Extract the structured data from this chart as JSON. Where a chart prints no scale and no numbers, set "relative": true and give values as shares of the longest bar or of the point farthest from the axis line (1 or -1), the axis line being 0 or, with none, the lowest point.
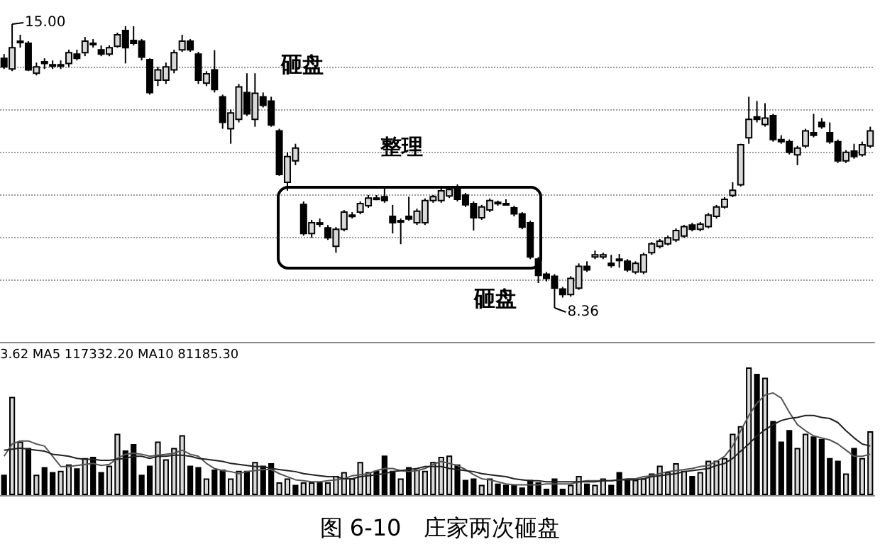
{
  "chart_data": [
    {
      "type": "candlestick",
      "colors": [
        "#000000",
        "#d9d9d9",
        "#d9d9d9",
        "#000000",
        "#d9d9d9",
        "#000000",
        "#d9d9d9",
        "#d9d9d9",
        "#d9d9d9",
        "#000000",
        "#d9d9d9",
        "#d9d9d9",
        "#000000",
        "#d9d9d9",
        "#d9d9d9",
        "#000000",
        "#000000",
        "#000000",
        "#000000",
        "#d9d9d9",
        "#d9d9d9",
        "#d9d9d9",
        "#d9d9d9",
        "#000000",
        "#000000",
        "#d9d9d9",
        "#000000",
        "#000000",
        "#d9d9d9",
        "#d9d9d9",
        "#000000",
        "#d9d9d9",
        "#000000",
        "#000000",
        "#000000",
        "#d9d9d9",
        "#d9d9d9",
        "#000000",
        "#d9d9d9",
        "#d9d9d9",
        "#000000",
        "#d9d9d9",
        "#d9d9d9",
        "#d9d9d9",
        "#d9d9d9",
        "#d9d9d9",
        "#d9d9d9",
        "#000000",
        "#000000",
        "#000000",
        "#000000",
        "#d9d9d9",
        "#d9d9d9",
        "#d9d9d9",
        "#d9d9d9",
        "#d9d9d9",
        "#000000",
        "#000000",
        "#000000",
        "#d9d9d9",
        "#d9d9d9",
        "#000000",
        "#d9d9d9",
        "#000000",
        "#000000",
        "#000000",
        "#000000",
        "#000000",
        "#000000",
        "#000000",
        "#d9d9d9",
        "#d9d9d9",
        "#000000",
        "#d9d9d9",
        "#d9d9d9",
        "#000000",
        "#d9d9d9",
        "#000000",
        "#d9d9d9",
        "#d9d9d9",
        "#d9d9d9",
        "#d9d9d9",
        "#d9d9d9",
        "#d9d9d9",
        "#d9d9d9",
        "#000000",
        "#d9d9d9",
        "#d9d9d9",
        "#d9d9d9",
        "#d9d9d9",
        "#d9d9d9",
        "#d9d9d9",
        "#d9d9d9",
        "#000000",
        "#d9d9d9",
        "#000000",
        "#000000",
        "#000000",
        "#d9d9d9",
        "#d9d9d9",
        "#000000",
        "#000000",
        "#000000",
        "#000000",
        "#d9d9d9",
        "#000000",
        "#d9d9d9",
        "#d9d9d9"
      ],
      "yticks": [
        {
          "value": 9,
          "label": null
        },
        {
          "value": 10,
          "label": null
        },
        {
          "value": 11,
          "label": null
        },
        {
          "value": 12,
          "label": null
        },
        {
          "value": 13,
          "label": null
        },
        {
          "value": 14,
          "label": null
        }
      ],
      "grid": "y",
      "tick_labels": false,
      "annotations": [
        "15.00",
        "砸盘",
        "整理",
        "砸盘",
        "8.36"
      ],
      "categories": [
        null,
        null,
        null,
        null,
        null,
        null,
        null,
        null,
        null,
        null,
        null,
        null,
        null,
        null,
        null,
        null,
        null,
        null,
        null,
        null,
        null,
        null,
        null,
        null,
        null,
        null,
        null,
        null,
        null,
        null,
        null,
        null,
        null,
        null,
        null,
        null,
        null,
        null,
        null,
        null,
        null,
        null,
        null,
        null,
        null,
        null,
        null,
        null,
        null,
        null,
        null,
        null,
        null,
        null,
        null,
        null,
        null,
        null,
        null,
        null,
        null,
        null,
        null,
        null,
        null,
        null,
        null,
        null,
        null,
        null,
        null,
        null,
        null,
        null,
        null,
        null,
        null,
        null,
        null,
        null,
        null,
        null,
        null,
        null,
        null,
        null,
        null,
        null,
        null,
        null,
        null,
        null,
        null,
        null,
        null,
        null,
        null,
        null,
        null,
        null,
        null,
        null,
        null,
        null,
        null,
        null,
        null,
        null
      ],
      "ohlc": [
        [
          14.2,
          14.3,
          13.95,
          14.0
        ],
        [
          13.95,
          15.0,
          13.9,
          14.45
        ],
        [
          14.6,
          14.75,
          14.45,
          14.6
        ],
        [
          14.55,
          14.6,
          13.9,
          13.93
        ],
        [
          13.85,
          14.1,
          13.8,
          14.0
        ],
        [
          14.12,
          14.2,
          13.95,
          14.08
        ],
        [
          14.05,
          14.15,
          13.95,
          14.05
        ],
        [
          14.05,
          14.15,
          13.95,
          14.05
        ],
        [
          14.08,
          14.4,
          14.0,
          14.33
        ],
        [
          14.3,
          14.4,
          14.15,
          14.2
        ],
        [
          14.33,
          14.7,
          14.25,
          14.6
        ],
        [
          14.55,
          14.65,
          14.45,
          14.55
        ],
        [
          14.4,
          14.5,
          14.25,
          14.3
        ],
        [
          14.3,
          14.5,
          14.25,
          14.45
        ],
        [
          14.48,
          14.8,
          14.45,
          14.75
        ],
        [
          14.85,
          14.95,
          14.08,
          14.45
        ],
        [
          14.62,
          14.95,
          14.5,
          14.55
        ],
        [
          14.6,
          14.65,
          14.15,
          14.23
        ],
        [
          14.17,
          14.2,
          13.35,
          13.4
        ],
        [
          13.69,
          14.0,
          13.55,
          13.93
        ],
        [
          13.69,
          14.1,
          13.6,
          14.0
        ],
        [
          13.93,
          14.4,
          13.85,
          14.33
        ],
        [
          14.4,
          14.75,
          14.35,
          14.6
        ],
        [
          14.6,
          14.65,
          14.35,
          14.4
        ],
        [
          14.3,
          14.35,
          13.6,
          13.69
        ],
        [
          13.62,
          13.9,
          13.55,
          13.84
        ],
        [
          13.93,
          14.39,
          13.4,
          13.47
        ],
        [
          13.3,
          13.35,
          12.55,
          12.7
        ],
        [
          12.55,
          13.0,
          12.2,
          12.92
        ],
        [
          12.77,
          13.6,
          12.7,
          13.53
        ],
        [
          13.4,
          13.85,
          12.85,
          12.9
        ],
        [
          12.77,
          13.85,
          12.6,
          13.38
        ],
        [
          13.3,
          13.4,
          13.05,
          13.1
        ],
        [
          13.2,
          13.3,
          12.6,
          12.64
        ],
        [
          12.5,
          12.55,
          11.45,
          11.48
        ],
        [
          11.3,
          12.0,
          11.1,
          11.9
        ],
        [
          11.8,
          12.2,
          11.7,
          12.1
        ],
        [
          10.78,
          10.85,
          10.05,
          10.1
        ],
        [
          10.1,
          10.42,
          10.0,
          10.35
        ],
        [
          10.35,
          10.45,
          10.25,
          10.35
        ],
        [
          10.23,
          10.3,
          9.95,
          10.0
        ],
        [
          9.8,
          10.25,
          9.65,
          10.2
        ],
        [
          10.2,
          10.65,
          10.15,
          10.6
        ],
        [
          10.5,
          10.6,
          10.45,
          10.53
        ],
        [
          10.6,
          10.85,
          10.55,
          10.8
        ],
        [
          10.75,
          11.0,
          10.7,
          10.93
        ],
        [
          10.93,
          11.0,
          10.88,
          10.93
        ],
        [
          10.96,
          11.2,
          10.82,
          10.87
        ],
        [
          10.5,
          10.77,
          10.1,
          10.35
        ],
        [
          10.4,
          10.45,
          9.85,
          10.38
        ],
        [
          10.5,
          10.96,
          10.4,
          10.44
        ],
        [
          10.35,
          10.68,
          10.3,
          10.62
        ],
        [
          10.35,
          10.92,
          10.3,
          10.87
        ],
        [
          10.87,
          11.0,
          10.82,
          10.96
        ],
        [
          10.87,
          11.15,
          10.82,
          11.1
        ],
        [
          10.98,
          11.2,
          10.93,
          11.13
        ],
        [
          11.2,
          11.25,
          10.85,
          10.9
        ],
        [
          11.0,
          11.05,
          10.72,
          10.77
        ],
        [
          10.8,
          10.85,
          10.17,
          10.47
        ],
        [
          10.47,
          10.77,
          10.42,
          10.72
        ],
        [
          10.65,
          10.92,
          10.6,
          10.87
        ],
        [
          10.83,
          10.87,
          10.75,
          10.8
        ],
        [
          10.8,
          10.9,
          10.75,
          10.8
        ],
        [
          10.7,
          10.75,
          10.5,
          10.56
        ],
        [
          10.56,
          10.6,
          10.2,
          10.25
        ],
        [
          10.35,
          10.4,
          9.5,
          9.55
        ],
        [
          9.5,
          9.55,
          8.94,
          9.12
        ],
        [
          9.15,
          9.2,
          8.98,
          9.05
        ],
        [
          9.1,
          9.15,
          8.36,
          8.82
        ],
        [
          8.8,
          8.85,
          8.6,
          8.67
        ],
        [
          8.67,
          9.1,
          8.62,
          9.05
        ],
        [
          8.82,
          9.4,
          8.78,
          9.33
        ],
        [
          9.33,
          9.45,
          9.2,
          9.25
        ],
        [
          9.55,
          9.7,
          9.5,
          9.6
        ],
        [
          9.55,
          9.65,
          9.5,
          9.6
        ],
        [
          9.4,
          9.6,
          9.3,
          9.35
        ],
        [
          9.5,
          9.62,
          9.3,
          9.5
        ],
        [
          9.45,
          9.5,
          9.2,
          9.25
        ],
        [
          9.2,
          9.45,
          9.15,
          9.4
        ],
        [
          9.2,
          9.65,
          9.15,
          9.6
        ],
        [
          9.65,
          9.9,
          9.6,
          9.86
        ],
        [
          9.8,
          9.97,
          9.75,
          9.92
        ],
        [
          9.86,
          10.05,
          9.82,
          10.0
        ],
        [
          9.95,
          10.22,
          9.9,
          10.17
        ],
        [
          10.04,
          10.3,
          10.0,
          10.26
        ],
        [
          10.3,
          10.35,
          10.15,
          10.2
        ],
        [
          10.2,
          10.37,
          10.15,
          10.32
        ],
        [
          10.26,
          10.58,
          10.22,
          10.53
        ],
        [
          10.5,
          10.77,
          10.45,
          10.72
        ],
        [
          10.72,
          10.95,
          10.68,
          10.9
        ],
        [
          10.99,
          11.3,
          10.95,
          11.11
        ],
        [
          11.24,
          12.2,
          11.2,
          12.18
        ],
        [
          12.34,
          13.3,
          12.2,
          12.77
        ],
        [
          12.83,
          13.2,
          12.7,
          12.77
        ],
        [
          12.65,
          13.15,
          12.6,
          12.8
        ],
        [
          12.86,
          12.9,
          12.25,
          12.3
        ],
        [
          12.3,
          12.4,
          12.2,
          12.25
        ],
        [
          12.25,
          12.3,
          11.95,
          12.0
        ],
        [
          11.94,
          12.15,
          11.7,
          12.1
        ],
        [
          12.15,
          12.55,
          12.1,
          12.5
        ],
        [
          12.46,
          12.9,
          12.35,
          12.4
        ],
        [
          12.7,
          12.8,
          12.55,
          12.6
        ],
        [
          12.46,
          12.7,
          12.2,
          12.25
        ],
        [
          12.25,
          12.3,
          11.75,
          11.8
        ],
        [
          11.8,
          12.05,
          11.75,
          12.0
        ],
        [
          12.03,
          12.2,
          11.85,
          11.9
        ],
        [
          11.94,
          12.25,
          11.9,
          12.18
        ],
        [
          12.15,
          12.6,
          12.1,
          12.5
        ]
      ]
    },
    {
      "type": "bar",
      "relative": true,
      "title": "图 6-10　庄家两次砸盘",
      "annotations": [
        "3.62 MA5 117332.20 MA10 81185.30"
      ],
      "categories": [
        null,
        null,
        null,
        null,
        null,
        null,
        null,
        null,
        null,
        null,
        null,
        null,
        null,
        null,
        null,
        null,
        null,
        null,
        null,
        null,
        null,
        null,
        null,
        null,
        null,
        null,
        null,
        null,
        null,
        null,
        null,
        null,
        null,
        null,
        null,
        null,
        null,
        null,
        null,
        null,
        null,
        null,
        null,
        null,
        null,
        null,
        null,
        null,
        null,
        null,
        null,
        null,
        null,
        null,
        null,
        null,
        null,
        null,
        null,
        null,
        null,
        null,
        null,
        null,
        null,
        null,
        null,
        null,
        null,
        null,
        null,
        null,
        null,
        null,
        null,
        null,
        null,
        null,
        null,
        null,
        null,
        null,
        null,
        null,
        null,
        null,
        null,
        null,
        null,
        null,
        null,
        null,
        null,
        null,
        null,
        null,
        null,
        null,
        null,
        null,
        null,
        null,
        null,
        null,
        null,
        null,
        null,
        null
      ],
      "series": [
        {
          "values": [
            0.16,
            0.77,
            0.42,
            0.37,
            0.16,
            0.22,
            0.18,
            0.19,
            0.24,
            0.21,
            0.29,
            0.3,
            0.18,
            0.23,
            0.48,
            0.35,
            0.4,
            0.16,
            0.23,
            0.42,
            0.28,
            0.37,
            0.47,
            0.23,
            0.22,
            0.13,
            0.2,
            0.2,
            0.13,
            0.19,
            0.19,
            0.26,
            0.23,
            0.25,
            0.1,
            0.13,
            0.08,
            0.1,
            0.1,
            0.1,
            0.1,
            0.15,
            0.18,
            0.13,
            0.26,
            0.18,
            0.19,
            0.31,
            0.19,
            0.13,
            0.22,
            0.2,
            0.19,
            0.26,
            0.3,
            0.31,
            0.24,
            0.12,
            0.13,
            0.08,
            0.13,
            0.09,
            0.08,
            0.08,
            0.06,
            0.12,
            0.1,
            0.05,
            0.13,
            0.05,
            0.08,
            0.15,
            0.09,
            0.08,
            0.13,
            0.08,
            0.18,
            0.12,
            0.12,
            0.13,
            0.17,
            0.23,
            0.18,
            0.25,
            0.19,
            0.15,
            0.18,
            0.27,
            0.27,
            0.29,
            0.48,
            0.54,
            1.0,
            0.95,
            0.92,
            0.58,
            0.42,
            0.51,
            0.37,
            0.48,
            0.46,
            0.44,
            0.29,
            0.27,
            0.17,
            0.37,
            0.29,
            0.5
          ],
          "colors": [
            "#000000",
            "#d9d9d9",
            "#d9d9d9",
            "#000000",
            "#d9d9d9",
            "#000000",
            "#000000",
            "#d9d9d9",
            "#d9d9d9",
            "#000000",
            "#d9d9d9",
            "#000000",
            "#000000",
            "#d9d9d9",
            "#d9d9d9",
            "#000000",
            "#000000",
            "#000000",
            "#000000",
            "#d9d9d9",
            "#d9d9d9",
            "#d9d9d9",
            "#d9d9d9",
            "#000000",
            "#000000",
            "#d9d9d9",
            "#000000",
            "#000000",
            "#d9d9d9",
            "#d9d9d9",
            "#000000",
            "#d9d9d9",
            "#000000",
            "#000000",
            "#d9d9d9",
            "#d9d9d9",
            "#000000",
            "#d9d9d9",
            "#d9d9d9",
            "#000000",
            "#d9d9d9",
            "#d9d9d9",
            "#d9d9d9",
            "#d9d9d9",
            "#d9d9d9",
            "#d9d9d9",
            "#000000",
            "#000000",
            "#000000",
            "#d9d9d9",
            "#000000",
            "#d9d9d9",
            "#d9d9d9",
            "#d9d9d9",
            "#d9d9d9",
            "#d9d9d9",
            "#000000",
            "#000000",
            "#000000",
            "#d9d9d9",
            "#d9d9d9",
            "#000000",
            "#000000",
            "#000000",
            "#000000",
            "#000000",
            "#000000",
            "#000000",
            "#000000",
            "#000000",
            "#d9d9d9",
            "#d9d9d9",
            "#000000",
            "#d9d9d9",
            "#d9d9d9",
            "#000000",
            "#000000",
            "#000000",
            "#d9d9d9",
            "#d9d9d9",
            "#d9d9d9",
            "#d9d9d9",
            "#d9d9d9",
            "#d9d9d9",
            "#d9d9d9",
            "#000000",
            "#d9d9d9",
            "#d9d9d9",
            "#d9d9d9",
            "#d9d9d9",
            "#d9d9d9",
            "#d9d9d9",
            "#d9d9d9",
            "#000000",
            "#d9d9d9",
            "#000000",
            "#000000",
            "#000000",
            "#d9d9d9",
            "#d9d9d9",
            "#000000",
            "#000000",
            "#000000",
            "#000000",
            "#d9d9d9",
            "#000000",
            "#d9d9d9",
            "#d9d9d9"
          ]
        }
      ]
    },
    {
      "type": "line",
      "relative": true,
      "categories": [
        null,
        null,
        null,
        null,
        null,
        null,
        null,
        null,
        null,
        null,
        null,
        null,
        null,
        null,
        null,
        null,
        null,
        null,
        null,
        null,
        null,
        null,
        null,
        null,
        null,
        null,
        null,
        null,
        null,
        null,
        null,
        null,
        null,
        null,
        null,
        null,
        null,
        null,
        null,
        null,
        null,
        null,
        null,
        null,
        null,
        null,
        null,
        null,
        null,
        null,
        null,
        null,
        null,
        null,
        null,
        null,
        null,
        null,
        null,
        null,
        null,
        null,
        null,
        null,
        null,
        null,
        null,
        null,
        null,
        null,
        null,
        null,
        null,
        null,
        null,
        null,
        null,
        null,
        null,
        null,
        null,
        null,
        null,
        null,
        null,
        null,
        null,
        null,
        null,
        null,
        null,
        null,
        null,
        null,
        null,
        null,
        null,
        null,
        null,
        null,
        null,
        null,
        null,
        null,
        null,
        null,
        null,
        null
      ],
      "series": [
        {
          "color": "#555555",
          "values": [
            0.38,
            0.5,
            0.53,
            0.53,
            0.5,
            0.48,
            0.38,
            0.28,
            0.28,
            0.29,
            0.3,
            0.31,
            0.29,
            0.3,
            0.36,
            0.4,
            0.41,
            0.4,
            0.38,
            0.39,
            0.4,
            0.41,
            0.44,
            0.4,
            0.38,
            0.31,
            0.26,
            0.24,
            0.23,
            0.21,
            0.23,
            0.24,
            0.25,
            0.25,
            0.21,
            0.18,
            0.15,
            0.14,
            0.13,
            0.13,
            0.14,
            0.15,
            0.16,
            0.19,
            0.2,
            0.21,
            0.24,
            0.26,
            0.26,
            0.24,
            0.23,
            0.24,
            0.26,
            0.3,
            0.33,
            0.31,
            0.29,
            0.25,
            0.2,
            0.16,
            0.15,
            0.13,
            0.11,
            0.1,
            0.1,
            0.1,
            0.1,
            0.11,
            0.11,
            0.11,
            0.11,
            0.13,
            0.14,
            0.14,
            0.14,
            0.14,
            0.15,
            0.16,
            0.16,
            0.18,
            0.19,
            0.21,
            0.23,
            0.24,
            0.25,
            0.26,
            0.28,
            0.29,
            0.33,
            0.38,
            0.48,
            0.63,
            0.78,
            0.9,
            0.98,
            1.0,
            0.95,
            0.81,
            0.69,
            0.63,
            0.58,
            0.56,
            0.54,
            0.5,
            0.44,
            0.38,
            0.38,
            0.4
          ]
        },
        {
          "color": "#222222",
          "values": [
            0.44,
            0.45,
            0.46,
            0.45,
            0.44,
            0.43,
            0.4,
            0.39,
            0.38,
            0.36,
            0.35,
            0.35,
            0.34,
            0.34,
            0.35,
            0.36,
            0.38,
            0.38,
            0.36,
            0.38,
            0.38,
            0.39,
            0.39,
            0.38,
            0.36,
            0.35,
            0.34,
            0.33,
            0.31,
            0.3,
            0.29,
            0.28,
            0.28,
            0.26,
            0.25,
            0.24,
            0.23,
            0.21,
            0.2,
            0.19,
            0.18,
            0.18,
            0.16,
            0.16,
            0.18,
            0.19,
            0.2,
            0.21,
            0.23,
            0.24,
            0.25,
            0.26,
            0.28,
            0.28,
            0.28,
            0.26,
            0.25,
            0.24,
            0.23,
            0.21,
            0.2,
            0.19,
            0.18,
            0.16,
            0.15,
            0.14,
            0.14,
            0.13,
            0.13,
            0.13,
            0.13,
            0.13,
            0.13,
            0.13,
            0.14,
            0.14,
            0.15,
            0.15,
            0.15,
            0.16,
            0.18,
            0.19,
            0.2,
            0.21,
            0.23,
            0.24,
            0.25,
            0.26,
            0.29,
            0.31,
            0.36,
            0.43,
            0.5,
            0.58,
            0.64,
            0.69,
            0.73,
            0.75,
            0.76,
            0.78,
            0.78,
            0.76,
            0.75,
            0.71,
            0.63,
            0.56,
            0.5,
            0.48
          ]
        }
      ]
    }
  ]
}
